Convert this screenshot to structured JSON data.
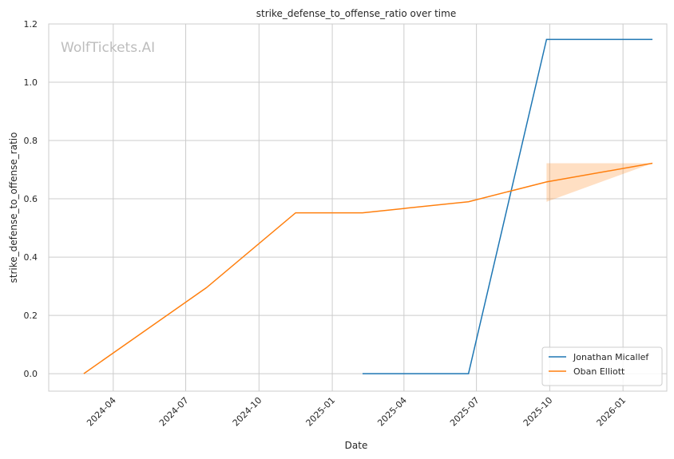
{
  "chart_data": {
    "type": "line",
    "title": "strike_defense_to_offense_ratio over time",
    "xlabel": "Date",
    "ylabel": "strike_defense_to_offense_ratio",
    "watermark": "WolfTickets.AI",
    "x_ticks": [
      "2024-04",
      "2024-07",
      "2024-10",
      "2025-01",
      "2025-04",
      "2025-07",
      "2025-10",
      "2026-01"
    ],
    "y_ticks": [
      "0.0",
      "0.2",
      "0.4",
      "0.6",
      "0.8",
      "1.0",
      "1.2"
    ],
    "xlim": [
      "2024-01-11",
      "2026-02-25"
    ],
    "ylim": [
      -0.06,
      1.2
    ],
    "grid": true,
    "legend_position": "bottom-right",
    "series": [
      {
        "name": "Jonathan Micallef",
        "color": "#1f77b4",
        "points": [
          {
            "x": "2025-02-08",
            "y": 0.0
          },
          {
            "x": "2025-06-21",
            "y": 0.0
          },
          {
            "x": "2025-09-27",
            "y": 1.147
          },
          {
            "x": "2026-02-07",
            "y": 1.147
          }
        ]
      },
      {
        "name": "Oban Elliott",
        "color": "#ff7f0e",
        "points": [
          {
            "x": "2024-02-24",
            "y": 0.0
          },
          {
            "x": "2024-07-27",
            "y": 0.295
          },
          {
            "x": "2024-11-16",
            "y": 0.552
          },
          {
            "x": "2025-02-08",
            "y": 0.552
          },
          {
            "x": "2025-06-21",
            "y": 0.59
          },
          {
            "x": "2025-09-27",
            "y": 0.658
          },
          {
            "x": "2026-02-07",
            "y": 0.722
          }
        ],
        "band": [
          {
            "x": "2025-09-27",
            "low": 0.59,
            "high": 0.722
          },
          {
            "x": "2026-02-07",
            "low": 0.722,
            "high": 0.722
          }
        ]
      }
    ]
  }
}
